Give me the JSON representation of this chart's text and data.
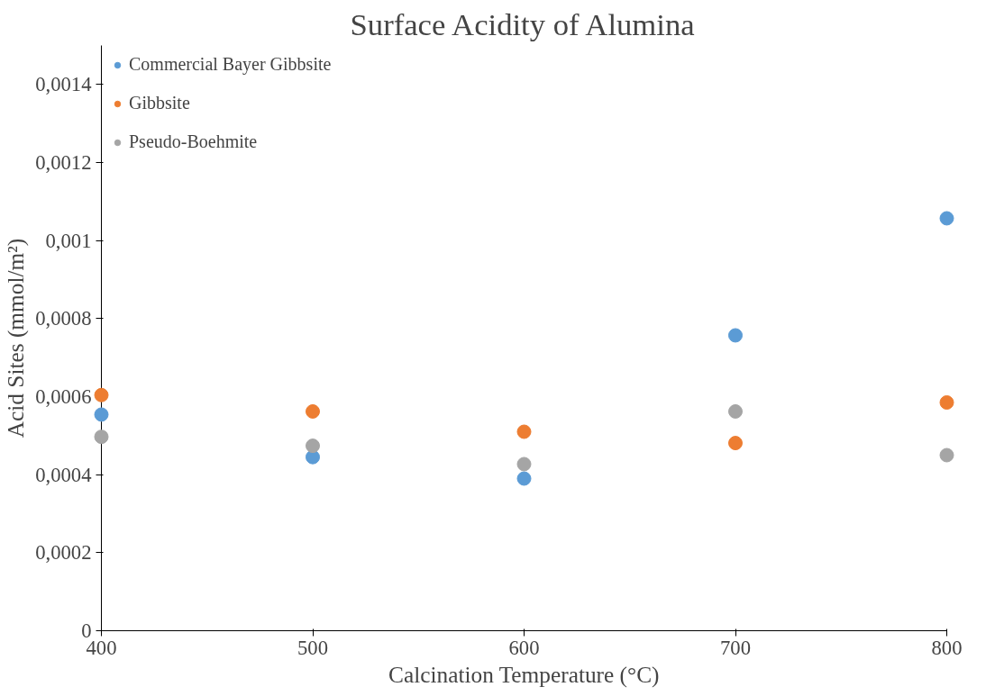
{
  "chart_data": {
    "type": "scatter",
    "title": "Surface Acidity of Alumina",
    "xlabel": "Calcination Temperature (°C)",
    "ylabel": "Acid Sites (mmol/m²)",
    "x": [
      400,
      500,
      600,
      700,
      800
    ],
    "series": [
      {
        "name": "Commercial Bayer Gibbsite",
        "color": "#5b9bd5",
        "values": [
          0.000554,
          0.000445,
          0.00039,
          0.000757,
          0.001057
        ]
      },
      {
        "name": "Gibbsite",
        "color": "#ed7d31",
        "values": [
          0.000604,
          0.000562,
          0.00051,
          0.000481,
          0.000585
        ]
      },
      {
        "name": "Pseudo-Boehmite",
        "color": "#a5a5a5",
        "values": [
          0.000497,
          0.000474,
          0.000427,
          0.000562,
          0.00045
        ]
      }
    ],
    "xlim": [
      400,
      800
    ],
    "xticks": [
      400,
      500,
      600,
      700,
      800
    ],
    "ylim": [
      0,
      0.0015
    ],
    "yticks": [
      0,
      {
        "value": 0.0002,
        "label": "0,0002"
      },
      {
        "value": 0.0004,
        "label": "0,0004"
      },
      {
        "value": 0.0006,
        "label": "0,0006"
      },
      {
        "value": 0.0008,
        "label": "0,0008"
      },
      {
        "value": 0.001,
        "label": "0,001"
      },
      {
        "value": 0.0012,
        "label": "0,0012"
      },
      {
        "value": 0.0014,
        "label": "0,0014"
      }
    ],
    "grid": false,
    "legend": "top left",
    "marker": "circle"
  }
}
